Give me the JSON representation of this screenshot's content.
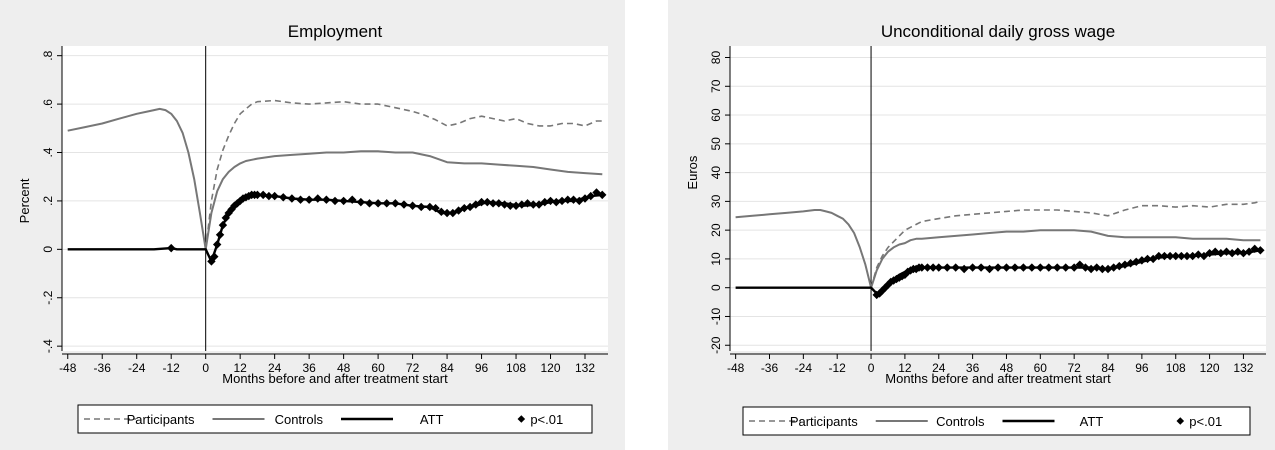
{
  "chart_data": [
    {
      "type": "line",
      "title": "Employment",
      "xlabel": "Months before and after treatment start",
      "ylabel": "Percent",
      "xlim": [
        -50,
        140
      ],
      "ylim": [
        -0.42,
        0.84
      ],
      "xticks": [
        -48,
        -36,
        -24,
        -12,
        0,
        12,
        24,
        36,
        48,
        60,
        72,
        84,
        96,
        108,
        120,
        132
      ],
      "xtick_labels": [
        "-48",
        "-36",
        "-24",
        "-12",
        "0",
        "12",
        "24",
        "36",
        "48",
        "60",
        "72",
        "84",
        "96",
        "108",
        "120",
        "132"
      ],
      "yticks": [
        -0.4,
        -0.2,
        0,
        0.2,
        0.4,
        0.6,
        0.8
      ],
      "ytick_labels": [
        "-.4",
        "-.2",
        "0",
        ".2",
        ".4",
        ".6",
        ".8"
      ],
      "grid": true,
      "vline_x": 0,
      "legend_position": "bottom",
      "series": [
        {
          "name": "Participants",
          "style": "dashed",
          "color": "#777777",
          "x": [
            0,
            2,
            4,
            6,
            8,
            10,
            12,
            14,
            16,
            18,
            24,
            30,
            36,
            42,
            48,
            54,
            60,
            66,
            72,
            76,
            80,
            84,
            88,
            92,
            96,
            100,
            104,
            108,
            112,
            116,
            120,
            124,
            128,
            132,
            136,
            138
          ],
          "y": [
            0.0,
            0.2,
            0.33,
            0.41,
            0.47,
            0.52,
            0.56,
            0.58,
            0.6,
            0.61,
            0.615,
            0.605,
            0.6,
            0.605,
            0.61,
            0.6,
            0.6,
            0.585,
            0.57,
            0.555,
            0.535,
            0.51,
            0.52,
            0.54,
            0.55,
            0.54,
            0.53,
            0.54,
            0.52,
            0.51,
            0.51,
            0.52,
            0.52,
            0.51,
            0.53,
            0.53
          ]
        },
        {
          "name": "Controls",
          "style": "solid",
          "color": "#777777",
          "x": [
            -48,
            -42,
            -36,
            -30,
            -24,
            -20,
            -18,
            -16,
            -14,
            -12,
            -10,
            -8,
            -6,
            -4,
            -2,
            0,
            2,
            4,
            6,
            8,
            10,
            12,
            14,
            16,
            18,
            24,
            30,
            36,
            42,
            48,
            54,
            60,
            66,
            72,
            78,
            84,
            90,
            96,
            102,
            108,
            114,
            120,
            126,
            132,
            138
          ],
          "y": [
            0.49,
            0.505,
            0.52,
            0.54,
            0.56,
            0.57,
            0.575,
            0.58,
            0.575,
            0.56,
            0.53,
            0.48,
            0.4,
            0.29,
            0.15,
            0.0,
            0.15,
            0.24,
            0.29,
            0.32,
            0.34,
            0.355,
            0.365,
            0.37,
            0.375,
            0.385,
            0.39,
            0.395,
            0.4,
            0.4,
            0.405,
            0.405,
            0.4,
            0.4,
            0.385,
            0.36,
            0.355,
            0.355,
            0.35,
            0.345,
            0.34,
            0.33,
            0.32,
            0.315,
            0.31
          ]
        },
        {
          "name": "ATT",
          "style": "solid",
          "color": "#000000",
          "x": [
            -48,
            -42,
            -36,
            -30,
            -24,
            -18,
            -12,
            -10,
            -8,
            -6,
            -4,
            -2,
            0,
            2,
            4,
            6,
            8,
            10,
            12,
            14,
            16,
            18,
            24,
            30,
            36,
            42,
            48,
            54,
            60,
            66,
            72,
            78,
            82,
            86,
            90,
            94,
            98,
            104,
            110,
            116,
            122,
            128,
            134,
            138
          ],
          "y": [
            0.0,
            0.0,
            0.0,
            0.0,
            0.0,
            0.0,
            0.005,
            0.0,
            0.0,
            0.0,
            0.0,
            0.0,
            0.0,
            -0.05,
            0.02,
            0.1,
            0.15,
            0.18,
            0.2,
            0.215,
            0.225,
            0.225,
            0.22,
            0.21,
            0.205,
            0.205,
            0.2,
            0.195,
            0.19,
            0.19,
            0.18,
            0.175,
            0.15,
            0.15,
            0.17,
            0.18,
            0.195,
            0.19,
            0.18,
            0.185,
            0.2,
            0.2,
            0.22,
            0.225
          ]
        },
        {
          "name": "p<.01",
          "style": "markers",
          "color": "#000000",
          "x": [
            -12,
            2,
            3,
            4,
            5,
            6,
            7,
            8,
            9,
            10,
            11,
            12,
            13,
            14,
            15,
            16,
            17,
            18,
            20,
            22,
            24,
            27,
            30,
            33,
            36,
            39,
            42,
            45,
            48,
            51,
            54,
            57,
            60,
            63,
            66,
            69,
            72,
            75,
            78,
            80,
            82,
            84,
            86,
            88,
            90,
            92,
            94,
            96,
            98,
            100,
            102,
            104,
            106,
            108,
            110,
            112,
            114,
            116,
            118,
            120,
            122,
            124,
            126,
            128,
            130,
            132,
            134,
            136,
            138
          ],
          "y": [
            0.005,
            -0.05,
            -0.03,
            0.02,
            0.06,
            0.1,
            0.13,
            0.15,
            0.165,
            0.18,
            0.19,
            0.2,
            0.21,
            0.215,
            0.22,
            0.225,
            0.225,
            0.225,
            0.225,
            0.22,
            0.22,
            0.215,
            0.21,
            0.205,
            0.205,
            0.21,
            0.205,
            0.2,
            0.2,
            0.205,
            0.195,
            0.19,
            0.19,
            0.19,
            0.19,
            0.185,
            0.18,
            0.175,
            0.175,
            0.17,
            0.155,
            0.15,
            0.15,
            0.16,
            0.17,
            0.175,
            0.185,
            0.195,
            0.195,
            0.19,
            0.19,
            0.185,
            0.18,
            0.18,
            0.185,
            0.19,
            0.185,
            0.185,
            0.195,
            0.2,
            0.195,
            0.2,
            0.205,
            0.205,
            0.2,
            0.21,
            0.22,
            0.235,
            0.225
          ]
        }
      ]
    },
    {
      "type": "line",
      "title": "Unconditional daily gross wage",
      "xlabel": "Months before and after treatment start",
      "ylabel": "Euros",
      "xlim": [
        -50,
        140
      ],
      "ylim": [
        -22,
        84
      ],
      "xticks": [
        -48,
        -36,
        -24,
        -12,
        0,
        12,
        24,
        36,
        48,
        60,
        72,
        84,
        96,
        108,
        120,
        132
      ],
      "xtick_labels": [
        "-48",
        "-36",
        "-24",
        "-12",
        "0",
        "12",
        "24",
        "36",
        "48",
        "60",
        "72",
        "84",
        "96",
        "108",
        "120",
        "132"
      ],
      "yticks": [
        -20,
        -10,
        0,
        10,
        20,
        30,
        40,
        50,
        60,
        70,
        80
      ],
      "ytick_labels": [
        "-20",
        "-10",
        "0",
        "10",
        "20",
        "30",
        "40",
        "50",
        "60",
        "70",
        "80"
      ],
      "grid": true,
      "vline_x": 0,
      "legend_position": "bottom",
      "series": [
        {
          "name": "Participants",
          "style": "dashed",
          "color": "#777777",
          "x": [
            0,
            2,
            4,
            6,
            8,
            10,
            12,
            14,
            16,
            18,
            24,
            30,
            36,
            42,
            48,
            54,
            60,
            66,
            72,
            78,
            84,
            90,
            96,
            102,
            108,
            114,
            120,
            126,
            132,
            136,
            138
          ],
          "y": [
            0,
            7,
            11,
            14,
            16,
            18,
            20,
            21,
            22,
            23,
            24,
            25,
            25.5,
            26,
            26.5,
            27,
            27,
            27,
            26.5,
            26,
            25,
            27,
            28.5,
            28.5,
            28,
            28.5,
            28,
            29,
            29,
            29.5,
            30
          ]
        },
        {
          "name": "Controls",
          "style": "solid",
          "color": "#777777",
          "x": [
            -48,
            -42,
            -36,
            -30,
            -24,
            -20,
            -18,
            -16,
            -14,
            -12,
            -10,
            -8,
            -6,
            -4,
            -2,
            0,
            2,
            4,
            6,
            8,
            10,
            12,
            14,
            16,
            18,
            24,
            30,
            36,
            42,
            48,
            54,
            60,
            66,
            72,
            78,
            84,
            90,
            96,
            102,
            108,
            114,
            120,
            126,
            132,
            138
          ],
          "y": [
            24.5,
            25,
            25.5,
            26,
            26.5,
            27,
            27,
            26.5,
            26,
            25,
            24,
            22,
            19,
            14,
            8,
            0,
            6,
            10,
            12.5,
            14,
            15,
            15.5,
            16.5,
            17,
            17,
            17.5,
            18,
            18.5,
            19,
            19.5,
            19.5,
            20,
            20,
            20,
            19.5,
            18,
            17.5,
            17.5,
            17.5,
            17.5,
            17,
            17,
            17,
            16.5,
            16.5
          ]
        },
        {
          "name": "ATT",
          "style": "solid",
          "color": "#000000",
          "x": [
            -48,
            -42,
            -36,
            -30,
            -24,
            -18,
            -12,
            -6,
            0,
            2,
            4,
            6,
            8,
            10,
            12,
            14,
            16,
            18,
            24,
            30,
            36,
            42,
            48,
            54,
            60,
            66,
            72,
            78,
            84,
            90,
            96,
            102,
            108,
            114,
            120,
            126,
            132,
            138
          ],
          "y": [
            0,
            0,
            0,
            0,
            0,
            0,
            0,
            0,
            0,
            -2,
            -1,
            1,
            3,
            4.5,
            5.5,
            6.5,
            7,
            7,
            7,
            7,
            7,
            7,
            7,
            7,
            7,
            7,
            7,
            7,
            6.5,
            7.5,
            9,
            10.5,
            11,
            11,
            11.5,
            12,
            12,
            13
          ]
        },
        {
          "name": "p<.01",
          "style": "markers",
          "color": "#000000",
          "x": [
            2,
            3,
            4,
            5,
            6,
            7,
            8,
            9,
            10,
            11,
            12,
            13,
            14,
            15,
            16,
            17,
            18,
            20,
            22,
            24,
            27,
            30,
            33,
            36,
            39,
            42,
            45,
            48,
            51,
            54,
            57,
            60,
            63,
            66,
            69,
            72,
            74,
            76,
            78,
            80,
            82,
            84,
            86,
            88,
            90,
            92,
            94,
            96,
            98,
            100,
            102,
            104,
            106,
            108,
            110,
            112,
            114,
            116,
            118,
            120,
            122,
            124,
            126,
            128,
            130,
            132,
            134,
            136,
            138
          ],
          "y": [
            -2.5,
            -2,
            -1,
            0,
            1,
            2,
            2.5,
            3,
            3.5,
            4,
            4.5,
            5.5,
            6,
            6.5,
            6.5,
            7,
            7,
            7,
            7,
            7,
            7,
            7,
            6.5,
            7,
            7,
            6.5,
            7,
            7,
            7,
            7,
            7,
            7,
            7,
            7,
            7,
            7,
            8,
            7,
            6.5,
            7,
            6.5,
            6.5,
            7,
            7.5,
            8,
            8.5,
            9,
            9.5,
            10,
            10,
            11,
            11,
            11,
            11,
            11,
            11,
            11,
            11.5,
            11,
            12,
            12.5,
            12,
            12.5,
            12,
            12.5,
            12,
            12.5,
            13.5,
            13
          ]
        }
      ]
    }
  ]
}
